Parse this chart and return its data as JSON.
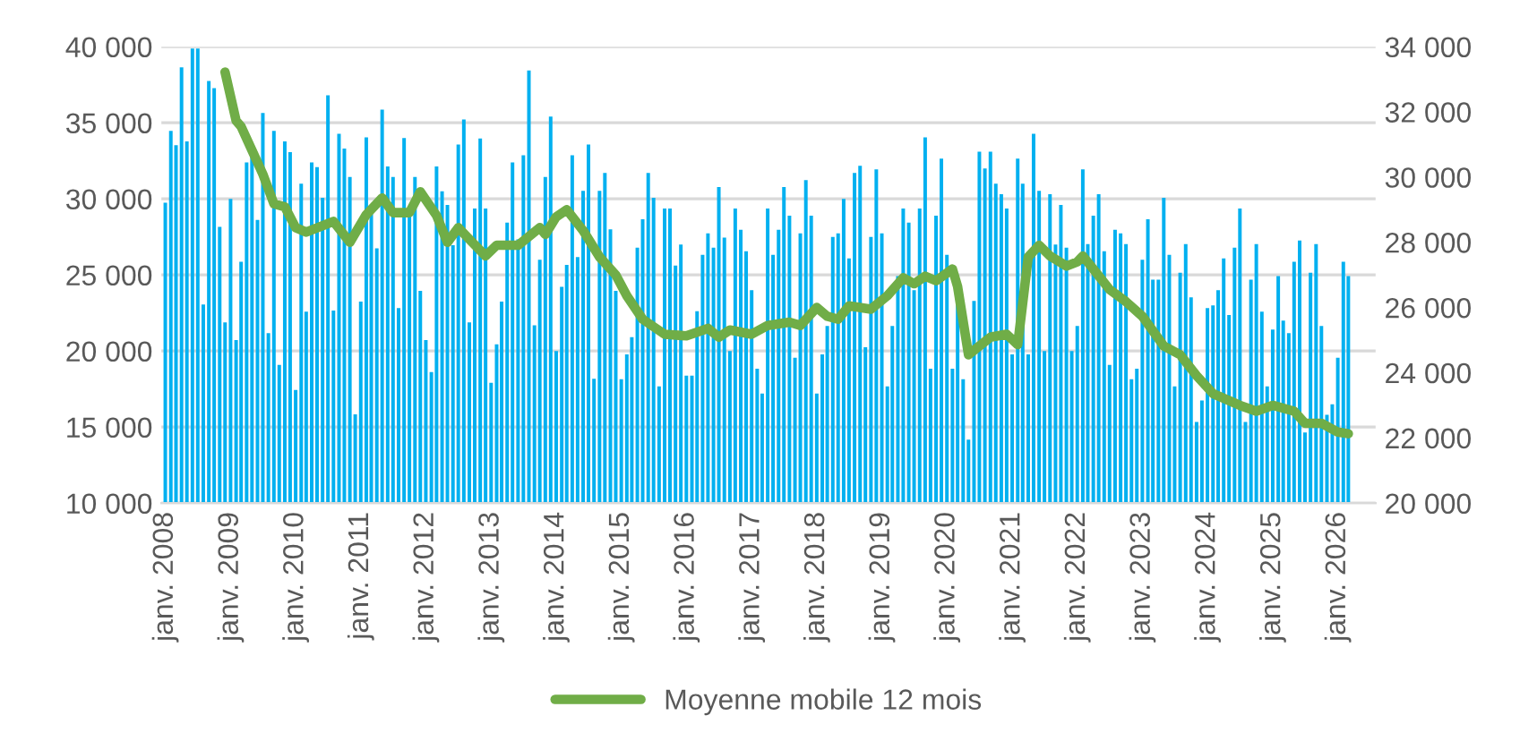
{
  "chart_data": {
    "type": "bar",
    "x": [
      "2008-01",
      "2008-02",
      "2008-03",
      "2008-04",
      "2008-05",
      "2008-06",
      "2008-07",
      "2008-08",
      "2008-09",
      "2008-10",
      "2008-11",
      "2008-12",
      "2009-01",
      "2009-02",
      "2009-03",
      "2009-04",
      "2009-05",
      "2009-06",
      "2009-07",
      "2009-08",
      "2009-09",
      "2009-10",
      "2009-11",
      "2009-12",
      "2010-01",
      "2010-02",
      "2010-03",
      "2010-04",
      "2010-05",
      "2010-06",
      "2010-07",
      "2010-08",
      "2010-09",
      "2010-10",
      "2010-11",
      "2010-12",
      "2011-01",
      "2011-02",
      "2011-03",
      "2011-04",
      "2011-05",
      "2011-06",
      "2011-07",
      "2011-08",
      "2011-09",
      "2011-10",
      "2011-11",
      "2011-12",
      "2012-01",
      "2012-02",
      "2012-03",
      "2012-04",
      "2012-05",
      "2012-06",
      "2012-07",
      "2012-08",
      "2012-09",
      "2012-10",
      "2012-11",
      "2012-12",
      "2013-01",
      "2013-02",
      "2013-03",
      "2013-04",
      "2013-05",
      "2013-06",
      "2013-07",
      "2013-08",
      "2013-09",
      "2013-10",
      "2013-11",
      "2013-12",
      "2014-01",
      "2014-02",
      "2014-03",
      "2014-04",
      "2014-05",
      "2014-06",
      "2014-07",
      "2014-08",
      "2014-09",
      "2014-10",
      "2014-11",
      "2014-12",
      "2015-01",
      "2015-02",
      "2015-03",
      "2015-04",
      "2015-05",
      "2015-06",
      "2015-07",
      "2015-08",
      "2015-09",
      "2015-10",
      "2015-11",
      "2015-12",
      "2016-01",
      "2016-02",
      "2016-03",
      "2016-04",
      "2016-05",
      "2016-06",
      "2016-07",
      "2016-08",
      "2016-09",
      "2016-10",
      "2016-11",
      "2016-12",
      "2017-01",
      "2017-02",
      "2017-03",
      "2017-04",
      "2017-05",
      "2017-06",
      "2017-07",
      "2017-08",
      "2017-09",
      "2017-10",
      "2017-11",
      "2017-12",
      "2018-01",
      "2018-02",
      "2018-03",
      "2018-04",
      "2018-05",
      "2018-06",
      "2018-07",
      "2018-08",
      "2018-09",
      "2018-10",
      "2018-11",
      "2018-12",
      "2019-01",
      "2019-02",
      "2019-03",
      "2019-04",
      "2019-05",
      "2019-06",
      "2019-07",
      "2019-08",
      "2019-09",
      "2019-10",
      "2019-11",
      "2019-12",
      "2020-01",
      "2020-02",
      "2020-03",
      "2020-04",
      "2020-05",
      "2020-06",
      "2020-07",
      "2020-08",
      "2020-09",
      "2020-10",
      "2020-11",
      "2020-12",
      "2021-01",
      "2021-02",
      "2021-03",
      "2021-04",
      "2021-05",
      "2021-06",
      "2021-07",
      "2021-08",
      "2021-09",
      "2021-10",
      "2021-11",
      "2021-12",
      "2022-01",
      "2022-02",
      "2022-03",
      "2022-04",
      "2022-05",
      "2022-06",
      "2022-07",
      "2022-08",
      "2022-09",
      "2022-10",
      "2022-11",
      "2022-12",
      "2023-01",
      "2023-02",
      "2023-03",
      "2023-04",
      "2023-05",
      "2023-06",
      "2023-07",
      "2023-08",
      "2023-09",
      "2023-10",
      "2023-11",
      "2023-12",
      "2024-01",
      "2024-02",
      "2024-03",
      "2024-04",
      "2024-05",
      "2024-06",
      "2024-07",
      "2024-08",
      "2024-09",
      "2024-10",
      "2024-11",
      "2024-12",
      "2025-01",
      "2025-02",
      "2025-03",
      "2025-04",
      "2025-05",
      "2025-06",
      "2025-07",
      "2025-08",
      "2025-09",
      "2025-10",
      "2025-11",
      "2025-12",
      "2026-01",
      "2026-02",
      "2026-03"
    ],
    "series": [
      {
        "color": "#00b0f0",
        "values": [
          29750,
          34470,
          33530,
          38640,
          33770,
          39880,
          39880,
          23050,
          37740,
          37270,
          28160,
          21880,
          30000,
          20710,
          25860,
          32400,
          32790,
          28620,
          35640,
          21180,
          34470,
          19080,
          33770,
          33070,
          17440,
          31000,
          22580,
          32400,
          32090,
          30070,
          36800,
          22660,
          34270,
          33300,
          31430,
          15840,
          23250,
          34040,
          29000,
          26750,
          35870,
          32130,
          31430,
          22820,
          34000,
          29130,
          31430,
          23950,
          20710,
          18610,
          32130,
          30500,
          29600,
          26950,
          33570,
          35210,
          21880,
          29360,
          33960,
          29360,
          17910,
          20440,
          23250,
          28430,
          32400,
          27340,
          32870,
          38440,
          21690,
          26000,
          31430,
          35400,
          19990,
          24220,
          25660,
          32870,
          26170,
          30530,
          33570,
          18180,
          30530,
          31700,
          28000,
          23950,
          18140,
          19780,
          20910,
          26790,
          28660,
          31700,
          30070,
          17680,
          29360,
          29360,
          25620,
          27000,
          18380,
          18380,
          22620,
          26320,
          27730,
          26790,
          30770,
          27450,
          19990,
          29360,
          27960,
          26560,
          24000,
          18840,
          17210,
          29360,
          26320,
          27960,
          30770,
          28900,
          19550,
          27730,
          31230,
          28900,
          17210,
          19780,
          21650,
          27490,
          27730,
          30000,
          26090,
          31700,
          32170,
          20250,
          27490,
          31930,
          27730,
          17680,
          21650,
          24920,
          29360,
          28430,
          24000,
          29360,
          34040,
          18840,
          28900,
          32640,
          26320,
          18840,
          23290,
          18140,
          14170,
          23290,
          33100,
          32000,
          33100,
          31000,
          30300,
          29360,
          19780,
          32640,
          31000,
          19780,
          34270,
          30530,
          19990,
          30300,
          27000,
          29600,
          26790,
          19990,
          21650,
          31930,
          27030,
          28900,
          30300,
          26560,
          19080,
          27960,
          27730,
          27030,
          18140,
          18840,
          26000,
          28660,
          24690,
          24690,
          30070,
          26320,
          17680,
          25150,
          27030,
          23520,
          15340,
          16740,
          22820,
          23000,
          24000,
          26090,
          22360,
          26790,
          29360,
          15340,
          24690,
          27030,
          22580,
          17680,
          21410,
          24920,
          22000,
          21180,
          25860,
          27260,
          14640,
          25150,
          27030,
          21650,
          15800,
          16500,
          19550,
          25860,
          24920
        ]
      },
      {
        "type": "line",
        "axis": "y2",
        "name": "Moyenne mobile 12 mois",
        "color": "#70ad47",
        "x": [
          "2008-12",
          "2009-02",
          "2009-03",
          "2009-05",
          "2009-07",
          "2009-09",
          "2009-11",
          "2010-01",
          "2010-03",
          "2010-08",
          "2010-11",
          "2011-02",
          "2011-05",
          "2011-07",
          "2011-10",
          "2011-12",
          "2012-03",
          "2012-05",
          "2012-07",
          "2012-09",
          "2012-12",
          "2013-02",
          "2013-06",
          "2013-10",
          "2013-11",
          "2014-01",
          "2014-03",
          "2014-06",
          "2014-09",
          "2014-12",
          "2015-02",
          "2015-05",
          "2015-09",
          "2016-01",
          "2016-05",
          "2016-07",
          "2016-09",
          "2017-01",
          "2017-04",
          "2017-08",
          "2017-10",
          "2018-01",
          "2018-03",
          "2018-05",
          "2018-07",
          "2018-11",
          "2019-02",
          "2019-05",
          "2019-07",
          "2019-09",
          "2019-11",
          "2020-02",
          "2020-03",
          "2020-05",
          "2020-07",
          "2020-09",
          "2020-12",
          "2021-02",
          "2021-04",
          "2021-06",
          "2021-08",
          "2021-11",
          "2022-01",
          "2022-02",
          "2022-04",
          "2022-07",
          "2022-10",
          "2023-01",
          "2023-05",
          "2023-08",
          "2023-11",
          "2024-02",
          "2024-07",
          "2024-10",
          "2025-01",
          "2025-05",
          "2025-07",
          "2025-10",
          "2026-01",
          "2026-03"
        ],
        "values": [
          33220,
          31730,
          31550,
          30820,
          30090,
          29180,
          29090,
          28450,
          28310,
          28640,
          28000,
          28850,
          29360,
          28910,
          28910,
          29550,
          28820,
          28000,
          28450,
          28090,
          27580,
          27910,
          27910,
          28450,
          28240,
          28780,
          29000,
          28360,
          27550,
          27000,
          26360,
          25640,
          25180,
          25130,
          25360,
          25090,
          25310,
          25180,
          25450,
          25550,
          25450,
          26000,
          25730,
          25640,
          26050,
          25950,
          26360,
          26910,
          26730,
          26960,
          26820,
          27180,
          26640,
          24550,
          24820,
          25090,
          25180,
          24860,
          27550,
          27910,
          27580,
          27270,
          27400,
          27580,
          27180,
          26550,
          26180,
          25730,
          24820,
          24550,
          23910,
          23360,
          23000,
          22820,
          23000,
          22820,
          22450,
          22450,
          22180,
          22130
        ]
      }
    ],
    "xlim": [
      "2007-12-10",
      "2026-08-01"
    ],
    "xticks": [
      {
        "value": "2008-01",
        "label": "janv. 2008"
      },
      {
        "value": "2009-01",
        "label": "janv. 2009"
      },
      {
        "value": "2010-01",
        "label": "janv. 2010"
      },
      {
        "value": "2011-01",
        "label": "janv. 2011"
      },
      {
        "value": "2012-01",
        "label": "janv. 2012"
      },
      {
        "value": "2013-01",
        "label": "janv. 2013"
      },
      {
        "value": "2014-01",
        "label": "janv. 2014"
      },
      {
        "value": "2015-01",
        "label": "janv. 2015"
      },
      {
        "value": "2016-01",
        "label": "janv. 2016"
      },
      {
        "value": "2017-01",
        "label": "janv. 2017"
      },
      {
        "value": "2018-01",
        "label": "janv. 2018"
      },
      {
        "value": "2019-01",
        "label": "janv. 2019"
      },
      {
        "value": "2020-01",
        "label": "janv. 2020"
      },
      {
        "value": "2021-01",
        "label": "janv. 2021"
      },
      {
        "value": "2022-01",
        "label": "janv. 2022"
      },
      {
        "value": "2023-01",
        "label": "janv. 2023"
      },
      {
        "value": "2024-01",
        "label": "janv. 2024"
      },
      {
        "value": "2025-01",
        "label": "janv. 2025"
      },
      {
        "value": "2026-01",
        "label": "janv. 2026"
      }
    ],
    "ylim": [
      10000,
      40000
    ],
    "yticks": [
      {
        "value": 10000,
        "label": "10 000"
      },
      {
        "value": 15000,
        "label": "15 000"
      },
      {
        "value": 20000,
        "label": "20 000"
      },
      {
        "value": 25000,
        "label": "25 000"
      },
      {
        "value": 30000,
        "label": "30 000"
      },
      {
        "value": 35000,
        "label": "35 000"
      },
      {
        "value": 40000,
        "label": "40 000"
      }
    ],
    "y2lim": [
      20000,
      34000
    ],
    "y2ticks": [
      {
        "value": 20000,
        "label": "20 000"
      },
      {
        "value": 22000,
        "label": "22 000"
      },
      {
        "value": 24000,
        "label": "24 000"
      },
      {
        "value": 26000,
        "label": "26 000"
      },
      {
        "value": 28000,
        "label": "28 000"
      },
      {
        "value": 30000,
        "label": "30 000"
      },
      {
        "value": 32000,
        "label": "32 000"
      },
      {
        "value": 34000,
        "label": "34 000"
      }
    ],
    "grid": "y",
    "legend": "bottom"
  }
}
